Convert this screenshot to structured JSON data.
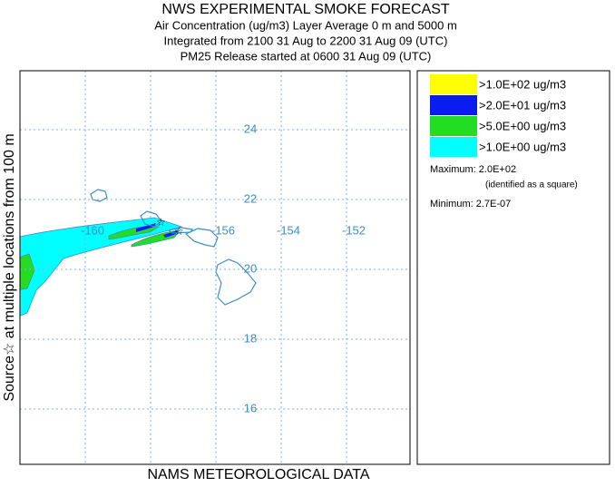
{
  "header": {
    "title": "NWS EXPERIMENTAL SMOKE FORECAST",
    "lines": [
      "Air Concentration (ug/m3) Layer Average    0 m and  5000 m",
      "Integrated from 2100 31 Aug to 2200 31 Aug 09 (UTC)",
      "PM25 Release started at 0600 31 Aug 09 (UTC)"
    ]
  },
  "side_label": "Source☆ at multiple locations  from  100 m",
  "footer": "NAMS METEOROLOGICAL DATA",
  "map": {
    "lat_labels": [
      24,
      22,
      20,
      18,
      16
    ],
    "lon_labels": [
      -160,
      -156,
      -154,
      -152
    ]
  },
  "legend": {
    "entries": [
      {
        "label": ">1.0E+02 ug/m3",
        "color": "#ffff00"
      },
      {
        "label": ">2.0E+01 ug/m3",
        "color": "#0a1cf0"
      },
      {
        "label": ">5.0E+00 ug/m3",
        "color": "#22dd22"
      },
      {
        "label": ">1.0E+00 ug/m3",
        "color": "#00ffff"
      }
    ],
    "maximum": "Maximum: 2.0E+02",
    "maximum_note": "(identified as a square)",
    "minimum": "Minimum: 2.7E-07"
  }
}
